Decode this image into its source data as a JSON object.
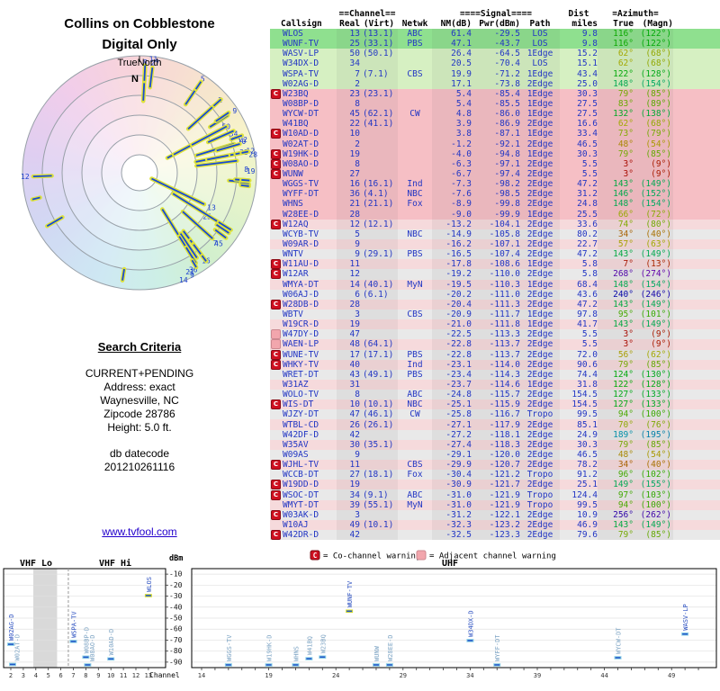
{
  "title": {
    "line1": "Collins on Cobblestone",
    "line2": "Digital Only"
  },
  "radar": {
    "orientation_label": "TrueNorth",
    "north_label": "N"
  },
  "search_criteria": {
    "heading": "Search Criteria",
    "scope": "CURRENT+PENDING",
    "address": "Address: exact",
    "city": "Waynesville, NC",
    "zipcode": "Zipcode 28786",
    "height": "Height: 5.0 ft.",
    "db_label": "db datecode",
    "db_value": "201210261116"
  },
  "footer_link": "www.tvfool.com",
  "legend": {
    "co_symbol": "C",
    "co_label": "= Co-channel warning",
    "adj_label": "= Adjacent channel warning"
  },
  "charts": {
    "vhf_lo_label": "VHF Lo",
    "vhf_hi_label": "VHF Hi",
    "uhf_label": "UHF",
    "y_axis_label": "dBm",
    "x_axis_label": "Channel",
    "y_ticks": [
      -10,
      -20,
      -30,
      -40,
      -50,
      -60,
      -70,
      -80,
      -90
    ],
    "vhf_channel_ticks": [
      2,
      3,
      4,
      5,
      6,
      7,
      8,
      9,
      10,
      11,
      12,
      13
    ],
    "uhf_channel_ticks": [
      14,
      19,
      24,
      29,
      34,
      39,
      44,
      49
    ]
  },
  "table": {
    "header_top": {
      "channel": "==Channel==",
      "signal": "====Signal====",
      "dist": "Dist",
      "azimuth": "=Azimuth="
    },
    "header_cols": {
      "callsign": "Callsign",
      "real": "Real",
      "virt": "(Virt)",
      "netwk": "Netwk",
      "nm": "NM(dB)",
      "pwr": "Pwr(dBm)",
      "path": "Path",
      "miles": "miles",
      "true": "True",
      "magn": "(Magn)"
    }
  },
  "colors": {
    "band_strong": "#8fe08f",
    "band_good": "#d6f0c2",
    "band_fair": "#f6bfc5",
    "band_weak_pink": "#f6dadc",
    "band_weak_gray": "#e9e9e9",
    "table_text_blue": "#2236c4",
    "warning_red": "#cf1020",
    "warning_pink": "#f2a6ad",
    "marker_blue": "#2257c9",
    "marker_halo_yellow": "#dde23a",
    "link_blue": "#2200cc"
  },
  "chart_data": {
    "type": "table",
    "title": "Collins on Cobblestone Digital Only",
    "columns": [
      "callsign",
      "real_ch",
      "virtual_ch",
      "network",
      "nm_db",
      "pwr_dbm",
      "path",
      "dist_miles",
      "azimuth_true_deg",
      "azimuth_magn_deg",
      "warning"
    ],
    "stations": [
      [
        "WLOS",
        13,
        "13.1",
        "ABC",
        61.4,
        -29.5,
        "LOS",
        9.8,
        116,
        122,
        ""
      ],
      [
        "WUNF-TV",
        25,
        "33.1",
        "PBS",
        47.1,
        -43.7,
        "LOS",
        9.8,
        116,
        122,
        ""
      ],
      [
        "WASV-LP",
        50,
        "50.1",
        "",
        26.4,
        -64.5,
        "1Edge",
        15.2,
        62,
        68,
        ""
      ],
      [
        "W34DX-D",
        34,
        "",
        "",
        20.5,
        -70.4,
        "LOS",
        15.1,
        62,
        68,
        ""
      ],
      [
        "WSPA-TV",
        7,
        "7.1",
        "CBS",
        19.9,
        -71.2,
        "1Edge",
        43.4,
        122,
        128,
        ""
      ],
      [
        "W02AG-D",
        2,
        "",
        "",
        17.1,
        -73.8,
        "2Edge",
        25.0,
        148,
        154,
        ""
      ],
      [
        "W23BQ",
        23,
        "23.1",
        "",
        5.4,
        -85.4,
        "1Edge",
        30.3,
        79,
        85,
        "C"
      ],
      [
        "W08BP-D",
        8,
        "",
        "",
        5.4,
        -85.5,
        "1Edge",
        27.5,
        83,
        89,
        ""
      ],
      [
        "WYCW-DT",
        45,
        "62.1",
        "CW",
        4.8,
        -86.0,
        "1Edge",
        27.5,
        132,
        138,
        ""
      ],
      [
        "W41BQ",
        22,
        "41.1",
        "",
        3.9,
        -86.9,
        "2Edge",
        16.6,
        62,
        68,
        ""
      ],
      [
        "W10AD-D",
        10,
        "",
        "",
        3.8,
        -87.1,
        "1Edge",
        33.4,
        73,
        79,
        "C"
      ],
      [
        "W02AT-D",
        2,
        "",
        "",
        -1.2,
        -92.1,
        "2Edge",
        46.5,
        48,
        54,
        ""
      ],
      [
        "W19HK-D",
        19,
        "",
        "",
        -4.0,
        -94.8,
        "1Edge",
        30.3,
        79,
        85,
        "C"
      ],
      [
        "W08AO-D",
        8,
        "",
        "",
        -6.3,
        -97.1,
        "2Edge",
        5.5,
        3,
        9,
        "C"
      ],
      [
        "WUNW",
        27,
        "",
        "",
        -6.7,
        -97.4,
        "2Edge",
        5.5,
        3,
        9,
        "C"
      ],
      [
        "WGGS-TV",
        16,
        "16.1",
        "Ind",
        -7.3,
        -98.2,
        "2Edge",
        47.2,
        143,
        149,
        ""
      ],
      [
        "WYFF-DT",
        36,
        "4.1",
        "NBC",
        -7.6,
        -98.5,
        "2Edge",
        31.2,
        146,
        152,
        ""
      ],
      [
        "WHNS",
        21,
        "21.1",
        "Fox",
        -8.9,
        -99.8,
        "2Edge",
        24.8,
        148,
        154,
        ""
      ],
      [
        "W28EE-D",
        28,
        "",
        "",
        -9.0,
        -99.9,
        "1Edge",
        25.5,
        66,
        72,
        ""
      ],
      [
        "W12AQ",
        12,
        "12.1",
        "",
        -13.2,
        -104.1,
        "2Edge",
        33.6,
        74,
        80,
        "C"
      ],
      [
        "WCYB-TV",
        5,
        "",
        "NBC",
        -14.9,
        -105.8,
        "2Edge",
        80.2,
        34,
        40,
        ""
      ],
      [
        "W09AR-D",
        9,
        "",
        "",
        -16.2,
        -107.1,
        "2Edge",
        22.7,
        57,
        63,
        ""
      ],
      [
        "WNTV",
        9,
        "29.1",
        "PBS",
        -16.5,
        -107.4,
        "2Edge",
        47.2,
        143,
        149,
        ""
      ],
      [
        "W11AU-D",
        11,
        "",
        "",
        -17.8,
        -108.6,
        "1Edge",
        5.8,
        7,
        13,
        "C"
      ],
      [
        "W12AR",
        12,
        "",
        "",
        -19.2,
        -110.0,
        "2Edge",
        5.8,
        268,
        274,
        "C"
      ],
      [
        "WMYA-DT",
        14,
        "40.1",
        "MyN",
        -19.5,
        -110.3,
        "1Edge",
        68.4,
        148,
        154,
        ""
      ],
      [
        "W06AJ-D",
        6,
        "6.1",
        "",
        -20.2,
        -111.0,
        "2Edge",
        43.6,
        240,
        246,
        ""
      ],
      [
        "W28DB-D",
        28,
        "",
        "",
        -20.4,
        -111.3,
        "2Edge",
        47.2,
        143,
        149,
        "C"
      ],
      [
        "WBTV",
        3,
        "",
        "CBS",
        -20.9,
        -111.7,
        "1Edge",
        97.8,
        95,
        101,
        ""
      ],
      [
        "W19CR-D",
        19,
        "",
        "",
        -21.0,
        -111.8,
        "1Edge",
        41.7,
        143,
        149,
        ""
      ],
      [
        "W47DY-D",
        47,
        "",
        "",
        -22.5,
        -113.3,
        "2Edge",
        5.5,
        3,
        9,
        "A"
      ],
      [
        "WAEN-LP",
        48,
        "64.1",
        "",
        -22.8,
        -113.7,
        "2Edge",
        5.5,
        3,
        9,
        "A"
      ],
      [
        "WUNE-TV",
        17,
        "17.1",
        "PBS",
        -22.8,
        -113.7,
        "2Edge",
        72.0,
        56,
        62,
        "C"
      ],
      [
        "WHKY-TV",
        40,
        "",
        "Ind",
        -23.1,
        -114.0,
        "2Edge",
        90.6,
        79,
        85,
        "C"
      ],
      [
        "WRET-DT",
        43,
        "49.1",
        "PBS",
        -23.4,
        -114.3,
        "2Edge",
        74.4,
        124,
        130,
        ""
      ],
      [
        "W31AZ",
        31,
        "",
        "",
        -23.7,
        -114.6,
        "1Edge",
        31.8,
        122,
        128,
        ""
      ],
      [
        "WOLO-TV",
        8,
        "",
        "ABC",
        -24.8,
        -115.7,
        "2Edge",
        154.5,
        127,
        133,
        ""
      ],
      [
        "WIS-DT",
        10,
        "10.1",
        "NBC",
        -25.1,
        -115.9,
        "2Edge",
        154.5,
        127,
        133,
        "C"
      ],
      [
        "WJZY-DT",
        47,
        "46.1",
        "CW",
        -25.8,
        -116.7,
        "Tropo",
        99.5,
        94,
        100,
        ""
      ],
      [
        "WTBL-CD",
        26,
        "26.1",
        "",
        -27.1,
        -117.9,
        "2Edge",
        85.1,
        70,
        76,
        ""
      ],
      [
        "W42DF-D",
        42,
        "",
        "",
        -27.2,
        -118.1,
        "2Edge",
        24.9,
        189,
        195,
        ""
      ],
      [
        "W35AV",
        30,
        "35.1",
        "",
        -27.4,
        -118.3,
        "2Edge",
        30.3,
        79,
        85,
        ""
      ],
      [
        "W09AS",
        9,
        "",
        "",
        -29.1,
        -120.0,
        "2Edge",
        46.5,
        48,
        54,
        ""
      ],
      [
        "WJHL-TV",
        11,
        "",
        "CBS",
        -29.9,
        -120.7,
        "2Edge",
        78.2,
        34,
        40,
        "C"
      ],
      [
        "WCCB-DT",
        27,
        "18.1",
        "Fox",
        -30.4,
        -121.2,
        "Tropo",
        91.2,
        96,
        102,
        ""
      ],
      [
        "W19DD-D",
        19,
        "",
        "",
        -30.9,
        -121.7,
        "2Edge",
        25.1,
        149,
        155,
        "C"
      ],
      [
        "WSOC-DT",
        34,
        "9.1",
        "ABC",
        -31.0,
        -121.9,
        "Tropo",
        124.4,
        97,
        103,
        "C"
      ],
      [
        "WMYT-DT",
        39,
        "55.1",
        "MyN",
        -31.0,
        -121.9,
        "Tropo",
        99.5,
        94,
        100,
        ""
      ],
      [
        "W03AK-D",
        3,
        "",
        "",
        -31.2,
        -122.1,
        "2Edge",
        10.9,
        256,
        262,
        "C"
      ],
      [
        "W10AJ",
        49,
        "10.1",
        "",
        -32.3,
        -123.2,
        "2Edge",
        46.9,
        143,
        149,
        ""
      ],
      [
        "W42DR-D",
        42,
        "",
        "",
        -32.5,
        -123.3,
        "2Edge",
        79.6,
        79,
        85,
        "C"
      ]
    ]
  }
}
